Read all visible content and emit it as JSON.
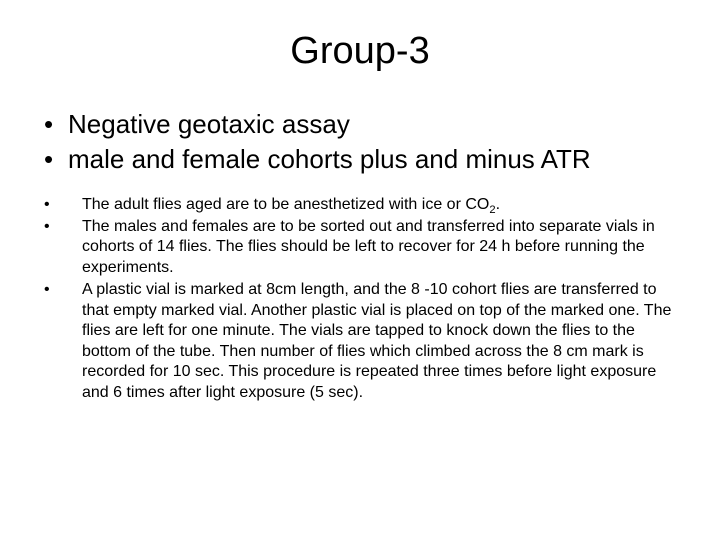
{
  "title": "Group-3",
  "main_bullets": [
    "Negative geotaxic assay",
    "male and female cohorts plus and minus ATR"
  ],
  "sub_bullets": [
    {
      "pre": "The adult flies aged are to be anesthetized with ice or CO",
      "sub": "2",
      "post": "."
    },
    {
      "pre": "The males and females are to be sorted out and transferred into separate vials in cohorts of 14 flies. The flies should be left to recover for 24 h before running the experiments.",
      "sub": "",
      "post": ""
    },
    {
      "pre": "A plastic vial is marked at 8cm length, and the 8 -10 cohort flies are transferred to that empty marked vial. Another plastic vial is placed on top of the marked one. The flies are left for one minute. The vials are tapped to knock down the flies to the bottom of the tube. Then number of flies which climbed across the 8 cm mark is recorded for 10 sec. This procedure is repeated three times before light exposure and 6 times after light exposure (5 sec).",
      "sub": "",
      "post": ""
    }
  ]
}
